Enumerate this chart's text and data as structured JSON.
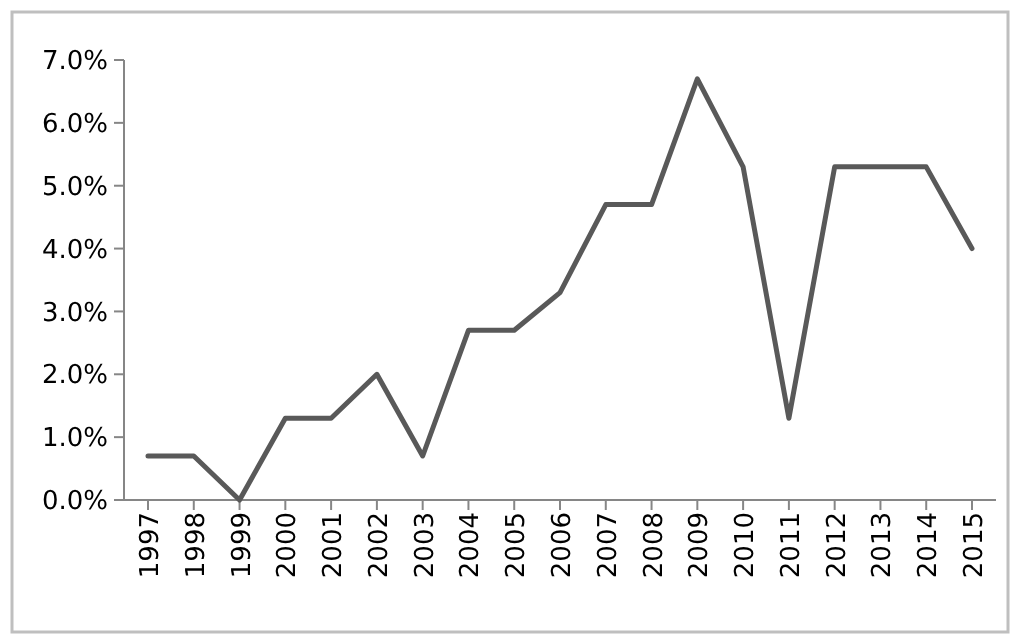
{
  "chart_data": {
    "type": "line",
    "categories": [
      "1997",
      "1998",
      "1999",
      "2000",
      "2001",
      "2002",
      "2003",
      "2004",
      "2005",
      "2006",
      "2007",
      "2008",
      "2009",
      "2010",
      "2011",
      "2012",
      "2013",
      "2014",
      "2015"
    ],
    "series": [
      {
        "color": "#595959",
        "values": [
          0.7,
          0.7,
          0,
          1.3,
          1.3,
          2.0,
          0.7,
          2.7,
          2.7,
          3.3,
          4.7,
          4.7,
          6.7,
          5.3,
          1.3,
          5.3,
          5.3,
          5.3,
          4.0
        ]
      }
    ],
    "ylim": [
      0,
      7
    ],
    "yticks": [
      {
        "value": 0,
        "label": "0.0%"
      },
      {
        "value": 1,
        "label": "1.0%"
      },
      {
        "value": 2,
        "label": "2.0%"
      },
      {
        "value": 3,
        "label": "3.0%"
      },
      {
        "value": 4,
        "label": "4.0%"
      },
      {
        "value": 5,
        "label": "5.0%"
      },
      {
        "value": 6,
        "label": "6.0%"
      },
      {
        "value": 7,
        "label": "7.0%"
      }
    ],
    "grid": false,
    "marker": "none",
    "line_style": "solid"
  }
}
